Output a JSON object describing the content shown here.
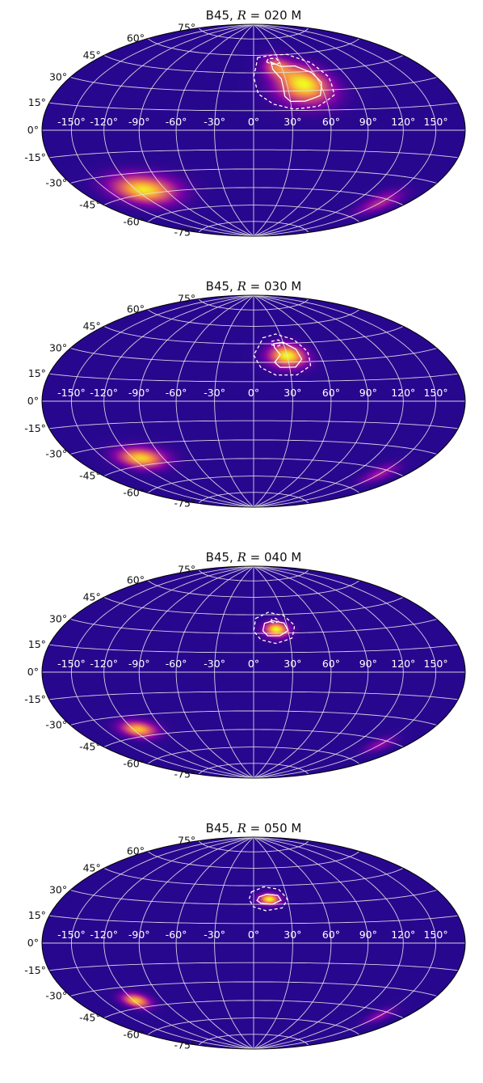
{
  "chart_data": [
    {
      "type": "heatmap",
      "projection": "hammer",
      "title_prefix": "B45, ",
      "title_var": "R",
      "title_suffix": " = 020 M",
      "grid": true,
      "colormap": "plasma",
      "hotspots": [
        {
          "lon": 45,
          "lat": 35,
          "lon_sigma": 16,
          "lat_sigma": 10,
          "peak": 1.0
        },
        {
          "lon": 25,
          "lat": 50,
          "lon_sigma": 10,
          "lat_sigma": 6,
          "peak": 0.55
        },
        {
          "lon": -112,
          "lat": -42,
          "lon_sigma": 22,
          "lat_sigma": 7,
          "peak": 0.95
        },
        {
          "lon": 150,
          "lat": -48,
          "lon_sigma": 12,
          "lat_sigma": 6,
          "peak": 0.35
        }
      ],
      "contours": [
        {
          "style": "solid",
          "ring": [
            [
              20,
              54
            ],
            [
              30,
              50
            ],
            [
              45,
              50
            ],
            [
              58,
              44
            ],
            [
              62,
              36
            ],
            [
              56,
              26
            ],
            [
              42,
              22
            ],
            [
              30,
              22
            ],
            [
              26,
              26
            ],
            [
              26,
              40
            ],
            [
              20,
              48
            ]
          ]
        },
        {
          "style": "dashed",
          "ring": [
            [
              5,
              58
            ],
            [
              25,
              60
            ],
            [
              45,
              60
            ],
            [
              65,
              52
            ],
            [
              72,
              40
            ],
            [
              68,
              26
            ],
            [
              52,
              18
            ],
            [
              32,
              16
            ],
            [
              16,
              20
            ],
            [
              4,
              28
            ],
            [
              0,
              42
            ]
          ]
        },
        {
          "style": "dashed",
          "ring": [
            [
              15,
              54
            ],
            [
              22,
              52
            ],
            [
              30,
              53
            ],
            [
              28,
              57
            ],
            [
              18,
              57
            ]
          ]
        }
      ]
    },
    {
      "type": "heatmap",
      "projection": "hammer",
      "title_prefix": "B45, ",
      "title_var": "R",
      "title_suffix": " = 030 M",
      "grid": true,
      "colormap": "plasma",
      "hotspots": [
        {
          "lon": 30,
          "lat": 35,
          "lon_sigma": 11,
          "lat_sigma": 6,
          "peak": 1.0
        },
        {
          "lon": -112,
          "lat": -40,
          "lon_sigma": 16,
          "lat_sigma": 5,
          "peak": 0.9
        },
        {
          "lon": 150,
          "lat": -48,
          "lon_sigma": 10,
          "lat_sigma": 5,
          "peak": 0.3
        }
      ],
      "contours": [
        {
          "style": "solid",
          "ring": [
            [
              20,
              45
            ],
            [
              30,
              46
            ],
            [
              40,
              40
            ],
            [
              42,
              32
            ],
            [
              35,
              26
            ],
            [
              22,
              26
            ],
            [
              18,
              30
            ],
            [
              24,
              36
            ],
            [
              20,
              42
            ]
          ]
        },
        {
          "style": "dashed",
          "ring": [
            [
              10,
              50
            ],
            [
              25,
              53
            ],
            [
              42,
              48
            ],
            [
              50,
              38
            ],
            [
              48,
              27
            ],
            [
              35,
              20
            ],
            [
              18,
              20
            ],
            [
              6,
              26
            ],
            [
              0,
              36
            ]
          ]
        },
        {
          "style": "dashed",
          "ring": [
            [
              18,
              44
            ],
            [
              24,
              43
            ],
            [
              30,
              45
            ],
            [
              26,
              48
            ],
            [
              19,
              47
            ]
          ]
        }
      ]
    },
    {
      "type": "heatmap",
      "projection": "hammer",
      "title_prefix": "B45, ",
      "title_var": "R",
      "title_suffix": " = 040 M",
      "grid": true,
      "colormap": "plasma",
      "hotspots": [
        {
          "lon": 20,
          "lat": 33,
          "lon_sigma": 7,
          "lat_sigma": 4,
          "peak": 1.0
        },
        {
          "lon": -115,
          "lat": -40,
          "lon_sigma": 12,
          "lat_sigma": 4,
          "peak": 0.85
        },
        {
          "lon": 150,
          "lat": -48,
          "lon_sigma": 9,
          "lat_sigma": 4,
          "peak": 0.25
        }
      ],
      "contours": [
        {
          "style": "solid",
          "ring": [
            [
              10,
              38
            ],
            [
              18,
              40
            ],
            [
              28,
              38
            ],
            [
              30,
              32
            ],
            [
              22,
              28
            ],
            [
              12,
              28
            ],
            [
              8,
              32
            ]
          ]
        },
        {
          "style": "dashed",
          "ring": [
            [
              2,
              42
            ],
            [
              15,
              47
            ],
            [
              30,
              44
            ],
            [
              37,
              36
            ],
            [
              32,
              26
            ],
            [
              18,
              22
            ],
            [
              6,
              25
            ],
            [
              0,
              32
            ]
          ]
        },
        {
          "style": "dashed",
          "ring": [
            [
              16,
              39
            ],
            [
              20,
              38
            ],
            [
              24,
              40
            ],
            [
              21,
              42
            ],
            [
              17,
              41
            ]
          ]
        }
      ]
    },
    {
      "type": "heatmap",
      "projection": "hammer",
      "title_prefix": "B45, ",
      "title_var": "R",
      "title_suffix": " = 050 M",
      "grid": true,
      "colormap": "plasma",
      "hotspots": [
        {
          "lon": 14,
          "lat": 34,
          "lon_sigma": 6,
          "lat_sigma": 3,
          "peak": 1.0
        },
        {
          "lon": -118,
          "lat": -40,
          "lon_sigma": 9,
          "lat_sigma": 3.5,
          "peak": 0.85
        },
        {
          "lon": 150,
          "lat": -48,
          "lon_sigma": 8,
          "lat_sigma": 4,
          "peak": 0.25
        }
      ],
      "contours": [
        {
          "style": "solid",
          "ring": [
            [
              5,
              36
            ],
            [
              12,
              38
            ],
            [
              22,
              37
            ],
            [
              24,
              33
            ],
            [
              16,
              30
            ],
            [
              6,
              31
            ],
            [
              3,
              33
            ]
          ]
        },
        {
          "style": "dashed",
          "ring": [
            [
              -2,
              40
            ],
            [
              10,
              44
            ],
            [
              24,
              42
            ],
            [
              30,
              34
            ],
            [
              24,
              27
            ],
            [
              10,
              25
            ],
            [
              0,
              28
            ],
            [
              -4,
              34
            ]
          ]
        }
      ]
    }
  ],
  "lon_labels": [
    "-150°",
    "-120°",
    "-90°",
    "-60°",
    "-30°",
    "0°",
    "30°",
    "60°",
    "90°",
    "120°",
    "150°"
  ],
  "lat_labels": [
    "-75°",
    "-60°",
    "-45°",
    "-30°",
    "-15°",
    "0°",
    "15°",
    "30°",
    "45°",
    "60°",
    "75°"
  ],
  "colors": {
    "background": "#ffffff",
    "grid": "#e6e6e6",
    "map_edge": "#000000",
    "contour": "#ffffff"
  }
}
